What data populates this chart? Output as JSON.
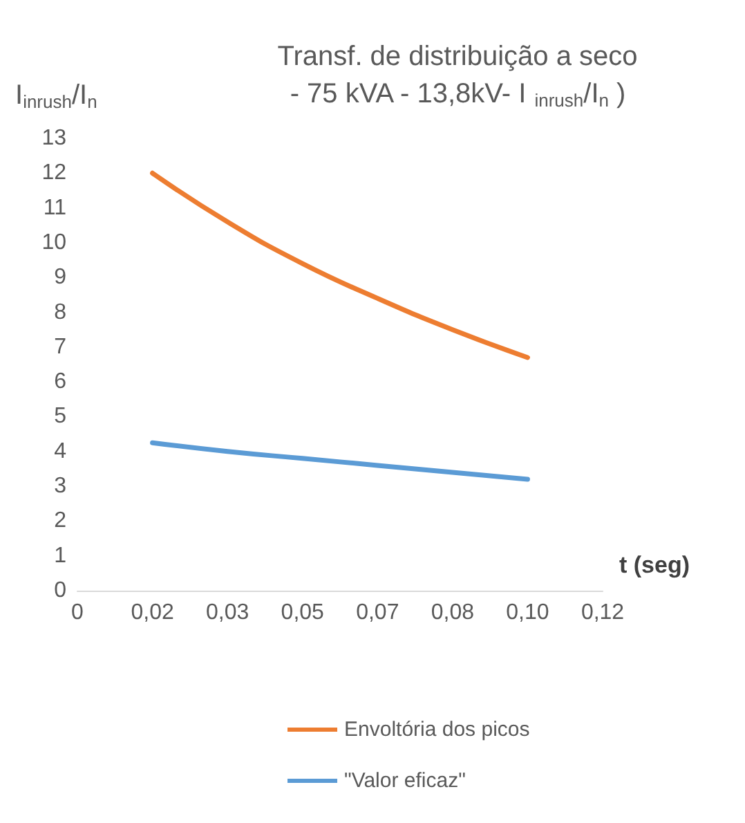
{
  "chart_data": {
    "type": "line",
    "title": "Transf. de distribuição a seco",
    "subtitle": "- 75 kVA - 13,8kV- I $_{inrush}$/I$_{n}$ )",
    "xlabel": "t (seg)",
    "ylabel": "I$_{inrush}$/I$_{n}$",
    "x": [
      0.016667,
      0.033333,
      0.05,
      0.066667,
      0.083333,
      0.1
    ],
    "series": [
      {
        "name": "Envoltória dos picos",
        "color": "#ed7d31",
        "values": [
          12,
          10.6,
          9.4,
          8.4,
          7.5,
          6.7
        ]
      },
      {
        "name": "\"Valor eficaz\"",
        "color": "#5b9bd5",
        "values": [
          4.25,
          4.0,
          3.8,
          3.6,
          3.4,
          3.2
        ]
      }
    ],
    "xlim": [
      0,
      0.116667
    ],
    "xticks": [
      0,
      {
        "value": 0.016667,
        "label": "0,02"
      },
      {
        "value": 0.033333,
        "label": "0,03"
      },
      {
        "value": 0.05,
        "label": "0,05"
      },
      {
        "value": 0.066667,
        "label": "0,07"
      },
      {
        "value": 0.083333,
        "label": "0,08"
      },
      {
        "value": 0.1,
        "label": "0,10"
      },
      {
        "value": 0.116667,
        "label": "0,12"
      }
    ],
    "ylim": [
      0,
      13
    ],
    "yticks": [
      0,
      1,
      2,
      3,
      4,
      5,
      6,
      7,
      8,
      9,
      10,
      11,
      12,
      13
    ],
    "grid": false,
    "legend": "bottom",
    "marker": "none",
    "line_style": "solid"
  }
}
